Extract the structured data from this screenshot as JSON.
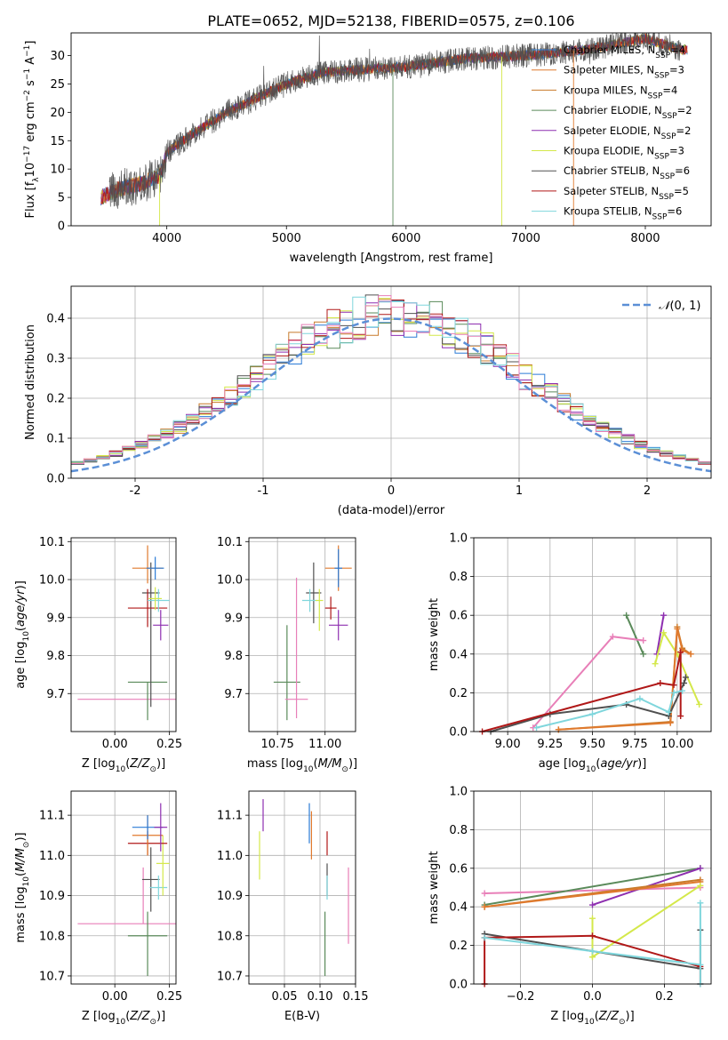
{
  "figure": {
    "title": "PLATE=0652, MJD=52138, FIBERID=0575, z=0.106"
  },
  "colors": {
    "Chabrier MILES": "#2b7bd6",
    "Salpeter MILES": "#e07a2e",
    "Kroupa MILES": "#c87a2a",
    "Chabrier ELODIE": "#5a8a5a",
    "Salpeter ELODIE": "#8e2fb0",
    "Kroupa ELODIE": "#d4e84a",
    "Chabrier STELIB": "#505050",
    "Salpeter STELIB": "#b01818",
    "Kroupa STELIB": "#7fd6dc",
    "pink": "#e87fb8",
    "normal": "#5b8fd6"
  },
  "chart_data": [
    {
      "id": "spectrum",
      "type": "line",
      "title": "PLATE=0652, MJD=52138, FIBERID=0575, z=0.106",
      "xlabel": "wavelength [Angstrom, rest frame]",
      "ylabel": "Flux [f_λ 10^-17 erg cm^-2 s^-1 A^-1]",
      "xlim": [
        3200,
        8550
      ],
      "ylim": [
        0,
        34
      ],
      "xticks": [
        4000,
        5000,
        6000,
        7000,
        8000
      ],
      "yticks": [
        0,
        5,
        10,
        15,
        20,
        25,
        30
      ],
      "grid": false,
      "legend": "top-right",
      "continuum": {
        "x": [
          3450,
          3600,
          3800,
          3950,
          4000,
          4200,
          4500,
          4800,
          5000,
          5300,
          5600,
          6000,
          6500,
          7000,
          7500,
          8000,
          8300
        ],
        "y": [
          5,
          6.5,
          7.5,
          9,
          13,
          16,
          20,
          23,
          25,
          27,
          27.5,
          28,
          29.5,
          30,
          31,
          33,
          31
        ]
      },
      "series": [
        {
          "name": "Chabrier MILES, N_SSP=4",
          "color": "#2b7bd6"
        },
        {
          "name": "Salpeter MILES, N_SSP=3",
          "color": "#e07a2e"
        },
        {
          "name": "Kroupa MILES, N_SSP=4",
          "color": "#c87a2a"
        },
        {
          "name": "Chabrier ELODIE, N_SSP=2",
          "color": "#5a8a5a"
        },
        {
          "name": "Salpeter ELODIE, N_SSP=2",
          "color": "#8e2fb0"
        },
        {
          "name": "Kroupa ELODIE, N_SSP=3",
          "color": "#d4e84a"
        },
        {
          "name": "Chabrier STELIB, N_SSP=6",
          "color": "#505050"
        },
        {
          "name": "Salpeter STELIB, N_SSP=5",
          "color": "#b01818"
        },
        {
          "name": "Kroupa STELIB, N_SSP=6",
          "color": "#7fd6dc"
        }
      ]
    },
    {
      "id": "hist",
      "type": "line",
      "xlabel": "(data-model)/error",
      "ylabel": "Normed distribution",
      "xlim": [
        -2.5,
        2.5
      ],
      "ylim": [
        0,
        0.48
      ],
      "xticks": [
        -2,
        -1,
        0,
        1,
        2
      ],
      "yticks": [
        0.0,
        0.1,
        0.2,
        0.3,
        0.4
      ],
      "grid": true,
      "legend": "top-right",
      "normal_label": "N(0,1)",
      "bin_edges_start": -2.5,
      "bin_width": 0.1,
      "n_bins": 50
    },
    {
      "id": "age_Z",
      "type": "scatter",
      "xlabel": "Z [log10(Z/Z⊙)]",
      "ylabel": "age  [log10(age/yr)]",
      "xlim": [
        -0.2,
        0.28
      ],
      "ylim": [
        9.6,
        10.11
      ],
      "xticks": [
        0.0,
        0.25
      ],
      "yticks": [
        9.7,
        9.8,
        9.9,
        10.0,
        10.1
      ],
      "grid": true,
      "points": [
        {
          "color": "#e87fb8",
          "x": 0.13,
          "y": 9.685,
          "xerr": 0.3,
          "yerr": [
            0.0,
            0.0
          ]
        },
        {
          "color": "#5a8a5a",
          "x": 0.15,
          "y": 9.73,
          "xerr": 0.09,
          "yerr": [
            0.1,
            0.0
          ]
        },
        {
          "color": "#505050",
          "x": 0.165,
          "y": 9.965,
          "xerr": 0.04,
          "yerr": [
            0.3,
            0.08
          ]
        },
        {
          "color": "#b01818",
          "x": 0.15,
          "y": 9.925,
          "xerr": 0.09,
          "yerr": [
            0.05,
            0.05
          ]
        },
        {
          "color": "#e07a2e",
          "x": 0.15,
          "y": 10.03,
          "xerr": 0.07,
          "yerr": [
            0.04,
            0.06
          ]
        },
        {
          "color": "#2b7bd6",
          "x": 0.185,
          "y": 10.03,
          "xerr": 0.04,
          "yerr": [
            0.03,
            0.03
          ]
        },
        {
          "color": "#8e2fb0",
          "x": 0.21,
          "y": 9.88,
          "xerr": 0.035,
          "yerr": [
            0.04,
            0.04
          ]
        },
        {
          "color": "#7fd6dc",
          "x": 0.2,
          "y": 9.945,
          "xerr": 0.05,
          "yerr": [
            0.03,
            0.03
          ]
        },
        {
          "color": "#d4e84a",
          "x": 0.185,
          "y": 9.95,
          "xerr": 0.03,
          "yerr": [
            0.03,
            0.03
          ]
        }
      ]
    },
    {
      "id": "age_mass",
      "type": "scatter",
      "xlabel": "mass [log10(M/M⊙)]",
      "xlim": [
        10.6,
        11.16
      ],
      "ylim": [
        9.6,
        10.11
      ],
      "xticks": [
        10.75,
        11.0
      ],
      "yticks": [
        9.7,
        9.8,
        9.9,
        10.0,
        10.1
      ],
      "grid": true,
      "points": [
        {
          "color": "#5a8a5a",
          "x": 10.8,
          "y": 9.73,
          "xerr": 0.07,
          "yerr": [
            0.1,
            0.15
          ]
        },
        {
          "color": "#e87fb8",
          "x": 10.85,
          "y": 9.685,
          "xerr": 0.06,
          "yerr": [
            0.05,
            0.32
          ]
        },
        {
          "color": "#505050",
          "x": 10.94,
          "y": 9.965,
          "xerr": 0.04,
          "yerr": [
            0.08,
            0.08
          ]
        },
        {
          "color": "#7fd6dc",
          "x": 10.92,
          "y": 9.945,
          "xerr": 0.04,
          "yerr": [
            0.03,
            0.03
          ]
        },
        {
          "color": "#d4e84a",
          "x": 10.97,
          "y": 9.945,
          "xerr": 0.02,
          "yerr": [
            0.08,
            0.03
          ]
        },
        {
          "color": "#b01818",
          "x": 11.03,
          "y": 9.925,
          "xerr": 0.03,
          "yerr": [
            0.03,
            0.03
          ]
        },
        {
          "color": "#e07a2e",
          "x": 11.07,
          "y": 10.03,
          "xerr": 0.07,
          "yerr": [
            0.06,
            0.06
          ]
        },
        {
          "color": "#2b7bd6",
          "x": 11.07,
          "y": 10.03,
          "xerr": 0.02,
          "yerr": [
            0.05,
            0.05
          ]
        },
        {
          "color": "#8e2fb0",
          "x": 11.07,
          "y": 9.88,
          "xerr": 0.05,
          "yerr": [
            0.04,
            0.04
          ]
        }
      ]
    },
    {
      "id": "mw_age",
      "type": "line",
      "xlabel": "age  [log10(age/yr)]",
      "ylabel": "mass weight",
      "xlim": [
        8.8,
        10.2
      ],
      "ylim": [
        0,
        1.0
      ],
      "xticks": [
        9.0,
        9.25,
        9.5,
        9.75,
        10.0
      ],
      "yticks": [
        0.0,
        0.2,
        0.4,
        0.6,
        0.8,
        1.0
      ],
      "grid": true,
      "series": [
        {
          "color": "#5a8a5a",
          "x": [
            9.7,
            9.8
          ],
          "y": [
            0.6,
            0.4
          ]
        },
        {
          "color": "#8e2fb0",
          "x": [
            9.88,
            9.92
          ],
          "y": [
            0.4,
            0.6
          ]
        },
        {
          "color": "#e87fb8",
          "x": [
            9.15,
            9.62,
            9.8
          ],
          "y": [
            0.02,
            0.49,
            0.47
          ]
        },
        {
          "color": "#d4e84a",
          "x": [
            9.87,
            9.92,
            10.0,
            10.13
          ],
          "y": [
            0.35,
            0.51,
            0.4,
            0.14
          ]
        },
        {
          "color": "#c87a2a",
          "x": [
            9.3,
            9.96,
            10.0,
            10.03,
            10.08
          ],
          "y": [
            0.01,
            0.05,
            0.54,
            0.43,
            0.4
          ]
        },
        {
          "color": "#e07a2e",
          "x": [
            9.3,
            9.96,
            10.0,
            10.03,
            10.08
          ],
          "y": [
            0.01,
            0.045,
            0.53,
            0.42,
            0.4
          ]
        },
        {
          "color": "#505050",
          "x": [
            8.9,
            9.25,
            9.7,
            9.95,
            10.04,
            10.05
          ],
          "y": [
            0.0,
            0.09,
            0.14,
            0.08,
            0.25,
            0.28
          ]
        },
        {
          "color": "#b01818",
          "x": [
            8.85,
            9.9,
            9.98,
            10.02,
            10.02
          ],
          "y": [
            0.0,
            0.25,
            0.24,
            0.41,
            0.08
          ]
        },
        {
          "color": "#7fd6dc",
          "x": [
            9.17,
            9.5,
            9.78,
            9.95,
            9.98,
            10.03
          ],
          "y": [
            0.02,
            0.09,
            0.17,
            0.1,
            0.2,
            0.21
          ]
        }
      ]
    },
    {
      "id": "mass_Z",
      "type": "scatter",
      "xlabel": "Z [log10(Z/Z⊙)]",
      "ylabel": "mass [log10(M/M⊙)]",
      "xlim": [
        -0.2,
        0.28
      ],
      "ylim": [
        10.68,
        11.16
      ],
      "xticks": [
        0.0,
        0.25
      ],
      "yticks": [
        10.7,
        10.8,
        10.9,
        11.0,
        11.1
      ],
      "grid": true,
      "points": [
        {
          "color": "#e87fb8",
          "x": 0.13,
          "y": 10.83,
          "xerr": 0.3,
          "yerr": [
            0.0,
            0.14
          ]
        },
        {
          "color": "#5a8a5a",
          "x": 0.15,
          "y": 10.8,
          "xerr": 0.09,
          "yerr": [
            0.1,
            0.06
          ]
        },
        {
          "color": "#505050",
          "x": 0.165,
          "y": 10.94,
          "xerr": 0.04,
          "yerr": [
            0.08,
            0.08
          ]
        },
        {
          "color": "#7fd6dc",
          "x": 0.2,
          "y": 10.92,
          "xerr": 0.04,
          "yerr": [
            0.03,
            0.03
          ]
        },
        {
          "color": "#d4e84a",
          "x": 0.22,
          "y": 10.98,
          "xerr": 0.03,
          "yerr": [
            0.08,
            0.07
          ]
        },
        {
          "color": "#b01818",
          "x": 0.15,
          "y": 11.03,
          "xerr": 0.09,
          "yerr": [
            0.03,
            0.03
          ]
        },
        {
          "color": "#e07a2e",
          "x": 0.15,
          "y": 11.05,
          "xerr": 0.07,
          "yerr": [
            0.05,
            0.05
          ]
        },
        {
          "color": "#2b7bd6",
          "x": 0.15,
          "y": 11.07,
          "xerr": 0.07,
          "yerr": [
            0.03,
            0.03
          ]
        },
        {
          "color": "#8e2fb0",
          "x": 0.21,
          "y": 11.07,
          "xerr": 0.03,
          "yerr": [
            0.06,
            0.06
          ]
        }
      ]
    },
    {
      "id": "mass_ebv",
      "type": "scatter",
      "xlabel": "E(B-V)",
      "xlim": [
        0.0,
        0.15
      ],
      "ylim": [
        10.68,
        11.16
      ],
      "xticks": [
        0.05,
        0.1,
        0.15
      ],
      "yticks": [
        10.7,
        10.8,
        10.9,
        11.0,
        11.1
      ],
      "grid": true,
      "points": [
        {
          "color": "#8e2fb0",
          "x": 0.02,
          "y": 11.1,
          "xerr": 0,
          "yerr": [
            0.04,
            0.04
          ]
        },
        {
          "color": "#d4e84a",
          "x": 0.015,
          "y": 11.0,
          "xerr": 0,
          "yerr": [
            0.06,
            0.06
          ]
        },
        {
          "color": "#2b7bd6",
          "x": 0.085,
          "y": 11.07,
          "xerr": 0,
          "yerr": [
            0.04,
            0.06
          ]
        },
        {
          "color": "#e07a2e",
          "x": 0.088,
          "y": 11.05,
          "xerr": 0,
          "yerr": [
            0.06,
            0.06
          ]
        },
        {
          "color": "#b01818",
          "x": 0.11,
          "y": 11.03,
          "xerr": 0,
          "yerr": [
            0.03,
            0.03
          ]
        },
        {
          "color": "#505050",
          "x": 0.11,
          "y": 10.94,
          "xerr": 0,
          "yerr": [
            0.04,
            0.04
          ]
        },
        {
          "color": "#7fd6dc",
          "x": 0.11,
          "y": 10.92,
          "xerr": 0,
          "yerr": [
            0.03,
            0.03
          ]
        },
        {
          "color": "#5a8a5a",
          "x": 0.107,
          "y": 10.8,
          "xerr": 0,
          "yerr": [
            0.1,
            0.06
          ]
        },
        {
          "color": "#e87fb8",
          "x": 0.14,
          "y": 10.87,
          "xerr": 0,
          "yerr": [
            0.09,
            0.1
          ]
        }
      ]
    },
    {
      "id": "mw_Z",
      "type": "line",
      "xlabel": "Z [log10(Z/Z⊙)]",
      "ylabel": "mass weight",
      "xlim": [
        -0.33,
        0.33
      ],
      "ylim": [
        0,
        1.0
      ],
      "xticks": [
        -0.2,
        0.0,
        0.2
      ],
      "yticks": [
        0.0,
        0.2,
        0.4,
        0.6,
        0.8,
        1.0
      ],
      "grid": true,
      "series": [
        {
          "color": "#e87fb8",
          "x": [
            -0.3,
            0.3
          ],
          "y": [
            0.47,
            0.5
          ]
        },
        {
          "color": "#5a8a5a",
          "x": [
            -0.3,
            0.3
          ],
          "y": [
            0.41,
            0.6
          ]
        },
        {
          "color": "#8e2fb0",
          "x": [
            0.0,
            0.3
          ],
          "y": [
            0.41,
            0.6
          ]
        },
        {
          "color": "#c87a2a",
          "x": [
            -0.3,
            0.3
          ],
          "y": [
            0.4,
            0.54
          ]
        },
        {
          "color": "#e07a2e",
          "x": [
            -0.3,
            0.3
          ],
          "y": [
            0.4,
            0.53
          ]
        },
        {
          "color": "#d4e84a",
          "x": [
            0.0,
            0.0,
            0.3
          ],
          "y": [
            0.34,
            0.14,
            0.51
          ]
        },
        {
          "color": "#505050",
          "x": [
            -0.3,
            0.3,
            0.3
          ],
          "y": [
            0.26,
            0.08,
            0.28
          ]
        },
        {
          "color": "#b01818",
          "x": [
            -0.3,
            -0.3,
            0.0,
            0.3,
            0.3
          ],
          "y": [
            0.0,
            0.24,
            0.25,
            0.09,
            0.0
          ]
        },
        {
          "color": "#7fd6dc",
          "x": [
            -0.3,
            0.0,
            0.3,
            0.3,
            0.3
          ],
          "y": [
            0.24,
            0.17,
            0.1,
            0.42,
            0.0
          ]
        }
      ]
    }
  ]
}
